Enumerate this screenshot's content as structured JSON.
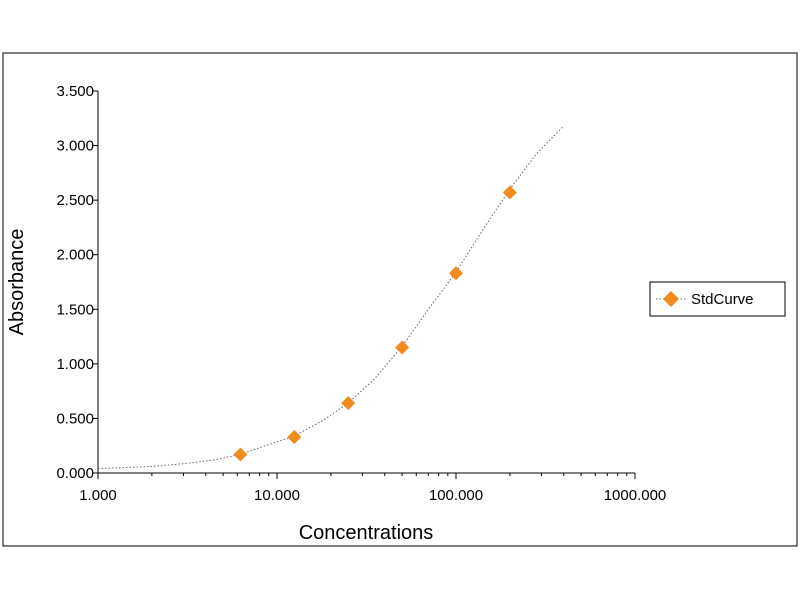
{
  "chart_data": {
    "type": "scatter",
    "xscale": "log",
    "xlabel": "Concentrations",
    "ylabel": "Absorbance",
    "xlim": [
      1,
      1000
    ],
    "ylim": [
      0,
      3.5
    ],
    "x_ticks": [
      1,
      10,
      100,
      1000
    ],
    "x_tick_labels": [
      "1.000",
      "10.000",
      "100.000",
      "1000.000"
    ],
    "y_ticks": [
      0,
      0.5,
      1,
      1.5,
      2,
      2.5,
      3,
      3.5
    ],
    "y_tick_labels": [
      "0.000",
      "0.500",
      "1.000",
      "1.500",
      "2.000",
      "2.500",
      "3.000",
      "3.500"
    ],
    "grid": false,
    "legend_position": "right",
    "series": [
      {
        "name": "StdCurve",
        "marker": "diamond",
        "color": "#F28A1E",
        "points": [
          {
            "x": 6.25,
            "y": 0.17
          },
          {
            "x": 12.5,
            "y": 0.33
          },
          {
            "x": 25,
            "y": 0.64
          },
          {
            "x": 50,
            "y": 1.15
          },
          {
            "x": 100,
            "y": 1.83
          },
          {
            "x": 200,
            "y": 2.57
          }
        ]
      }
    ],
    "fit_curve": {
      "style": "dotted",
      "color": "#666666",
      "points": [
        {
          "x": 1,
          "y": 0.04
        },
        {
          "x": 2,
          "y": 0.06
        },
        {
          "x": 3,
          "y": 0.085
        },
        {
          "x": 4.5,
          "y": 0.12
        },
        {
          "x": 6.25,
          "y": 0.17
        },
        {
          "x": 9,
          "y": 0.26
        },
        {
          "x": 12.5,
          "y": 0.34
        },
        {
          "x": 18,
          "y": 0.48
        },
        {
          "x": 25,
          "y": 0.64
        },
        {
          "x": 35,
          "y": 0.86
        },
        {
          "x": 50,
          "y": 1.16
        },
        {
          "x": 70,
          "y": 1.5
        },
        {
          "x": 100,
          "y": 1.84
        },
        {
          "x": 140,
          "y": 2.22
        },
        {
          "x": 200,
          "y": 2.6
        },
        {
          "x": 280,
          "y": 2.92
        },
        {
          "x": 400,
          "y": 3.18
        }
      ]
    }
  }
}
